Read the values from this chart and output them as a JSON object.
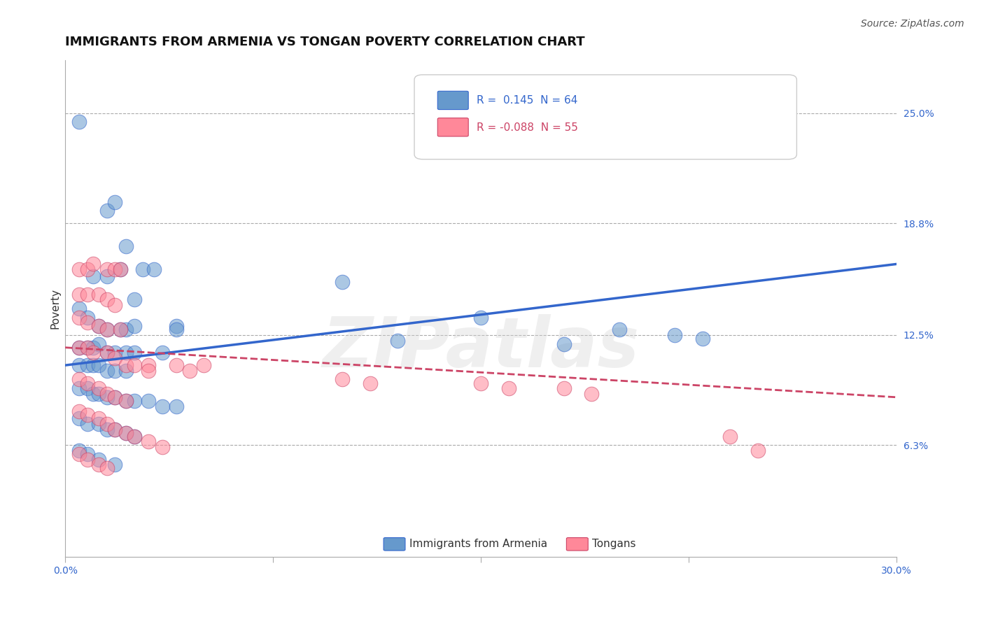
{
  "title": "IMMIGRANTS FROM ARMENIA VS TONGAN POVERTY CORRELATION CHART",
  "source": "Source: ZipAtlas.com",
  "ylabel": "Poverty",
  "xlim": [
    0.0,
    0.3
  ],
  "ylim": [
    0.0,
    0.28
  ],
  "yticks_right": [
    0.063,
    0.125,
    0.188,
    0.25
  ],
  "yticklabels_right": [
    "6.3%",
    "12.5%",
    "18.8%",
    "25.0%"
  ],
  "hlines": [
    0.063,
    0.125,
    0.188,
    0.25
  ],
  "blue_R": 0.145,
  "blue_N": 64,
  "pink_R": -0.088,
  "pink_N": 55,
  "blue_color": "#6699cc",
  "pink_color": "#ff8899",
  "blue_line_color": "#3366cc",
  "pink_line_color": "#cc4466",
  "blue_scatter": [
    [
      0.005,
      0.245
    ],
    [
      0.015,
      0.195
    ],
    [
      0.018,
      0.2
    ],
    [
      0.022,
      0.175
    ],
    [
      0.01,
      0.158
    ],
    [
      0.015,
      0.158
    ],
    [
      0.02,
      0.162
    ],
    [
      0.028,
      0.162
    ],
    [
      0.032,
      0.162
    ],
    [
      0.025,
      0.145
    ],
    [
      0.005,
      0.14
    ],
    [
      0.008,
      0.135
    ],
    [
      0.012,
      0.13
    ],
    [
      0.015,
      0.128
    ],
    [
      0.02,
      0.128
    ],
    [
      0.022,
      0.128
    ],
    [
      0.005,
      0.118
    ],
    [
      0.008,
      0.118
    ],
    [
      0.01,
      0.118
    ],
    [
      0.012,
      0.12
    ],
    [
      0.015,
      0.115
    ],
    [
      0.018,
      0.115
    ],
    [
      0.022,
      0.115
    ],
    [
      0.025,
      0.115
    ],
    [
      0.035,
      0.115
    ],
    [
      0.005,
      0.108
    ],
    [
      0.008,
      0.108
    ],
    [
      0.01,
      0.108
    ],
    [
      0.012,
      0.108
    ],
    [
      0.015,
      0.105
    ],
    [
      0.018,
      0.105
    ],
    [
      0.022,
      0.105
    ],
    [
      0.005,
      0.095
    ],
    [
      0.008,
      0.095
    ],
    [
      0.01,
      0.092
    ],
    [
      0.012,
      0.092
    ],
    [
      0.015,
      0.09
    ],
    [
      0.018,
      0.09
    ],
    [
      0.022,
      0.088
    ],
    [
      0.025,
      0.088
    ],
    [
      0.03,
      0.088
    ],
    [
      0.035,
      0.085
    ],
    [
      0.04,
      0.085
    ],
    [
      0.005,
      0.078
    ],
    [
      0.008,
      0.075
    ],
    [
      0.012,
      0.075
    ],
    [
      0.015,
      0.072
    ],
    [
      0.018,
      0.072
    ],
    [
      0.022,
      0.07
    ],
    [
      0.025,
      0.068
    ],
    [
      0.005,
      0.06
    ],
    [
      0.008,
      0.058
    ],
    [
      0.012,
      0.055
    ],
    [
      0.018,
      0.052
    ],
    [
      0.025,
      0.13
    ],
    [
      0.1,
      0.155
    ],
    [
      0.15,
      0.135
    ],
    [
      0.2,
      0.128
    ],
    [
      0.22,
      0.125
    ],
    [
      0.23,
      0.123
    ],
    [
      0.12,
      0.122
    ],
    [
      0.18,
      0.12
    ],
    [
      0.04,
      0.13
    ],
    [
      0.04,
      0.128
    ]
  ],
  "pink_scatter": [
    [
      0.005,
      0.162
    ],
    [
      0.008,
      0.162
    ],
    [
      0.01,
      0.165
    ],
    [
      0.015,
      0.162
    ],
    [
      0.018,
      0.162
    ],
    [
      0.02,
      0.162
    ],
    [
      0.005,
      0.148
    ],
    [
      0.008,
      0.148
    ],
    [
      0.012,
      0.148
    ],
    [
      0.015,
      0.145
    ],
    [
      0.018,
      0.142
    ],
    [
      0.005,
      0.135
    ],
    [
      0.008,
      0.132
    ],
    [
      0.012,
      0.13
    ],
    [
      0.015,
      0.128
    ],
    [
      0.02,
      0.128
    ],
    [
      0.005,
      0.118
    ],
    [
      0.008,
      0.118
    ],
    [
      0.01,
      0.115
    ],
    [
      0.015,
      0.115
    ],
    [
      0.018,
      0.112
    ],
    [
      0.022,
      0.108
    ],
    [
      0.025,
      0.108
    ],
    [
      0.005,
      0.1
    ],
    [
      0.008,
      0.098
    ],
    [
      0.012,
      0.095
    ],
    [
      0.015,
      0.092
    ],
    [
      0.018,
      0.09
    ],
    [
      0.022,
      0.088
    ],
    [
      0.005,
      0.082
    ],
    [
      0.008,
      0.08
    ],
    [
      0.012,
      0.078
    ],
    [
      0.015,
      0.075
    ],
    [
      0.018,
      0.072
    ],
    [
      0.022,
      0.07
    ],
    [
      0.025,
      0.068
    ],
    [
      0.03,
      0.065
    ],
    [
      0.035,
      0.062
    ],
    [
      0.005,
      0.058
    ],
    [
      0.008,
      0.055
    ],
    [
      0.012,
      0.052
    ],
    [
      0.015,
      0.05
    ],
    [
      0.03,
      0.108
    ],
    [
      0.03,
      0.105
    ],
    [
      0.04,
      0.108
    ],
    [
      0.045,
      0.105
    ],
    [
      0.05,
      0.108
    ],
    [
      0.1,
      0.1
    ],
    [
      0.11,
      0.098
    ],
    [
      0.15,
      0.098
    ],
    [
      0.16,
      0.095
    ],
    [
      0.18,
      0.095
    ],
    [
      0.19,
      0.092
    ],
    [
      0.24,
      0.068
    ],
    [
      0.25,
      0.06
    ]
  ],
  "watermark": "ZIPatlas",
  "background_color": "#ffffff",
  "title_fontsize": 13,
  "axis_label_fontsize": 11,
  "tick_fontsize": 10,
  "legend_fontsize": 11,
  "blue_line_start_y": 0.108,
  "blue_line_end_y": 0.165,
  "pink_line_start_y": 0.118,
  "pink_line_end_y": 0.09
}
